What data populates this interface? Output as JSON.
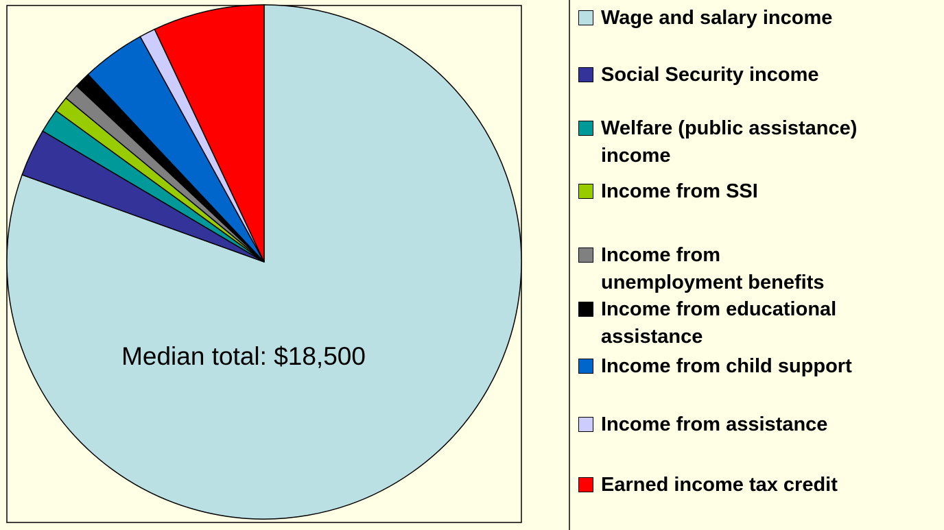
{
  "chart_data": {
    "type": "pie",
    "categories": [
      "Wage and salary income",
      "Social Security income",
      "Welfare (public assistance)\nincome",
      "Income from SSI",
      "Income from\nunemployment benefits",
      "Income from educational\nassistance",
      "Income from child support",
      "Income from assistance",
      "Earned income tax credit"
    ],
    "values": [
      80.5,
      3,
      1.5,
      1,
      1,
      1,
      4,
      1,
      7
    ],
    "colors": [
      "#bbe0e3",
      "#333399",
      "#009999",
      "#99cc00",
      "#808080",
      "#000000",
      "#0066cc",
      "#ccccff",
      "#ff0000"
    ],
    "annotation": "Median total: $18,500"
  }
}
